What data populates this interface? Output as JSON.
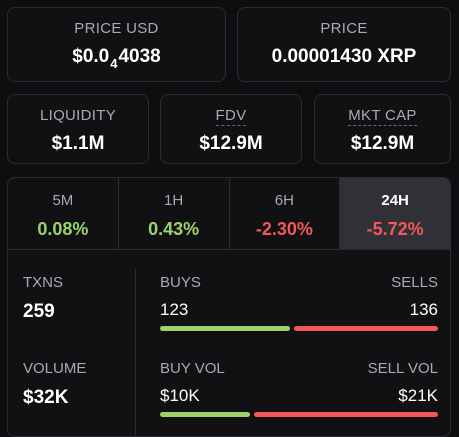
{
  "price_usd": {
    "label": "PRICE USD",
    "prefix": "$0.0",
    "zeros": "4",
    "digits": "4038"
  },
  "price_native": {
    "label": "PRICE",
    "value": "0.00001430 XRP"
  },
  "liquidity": {
    "label": "LIQUIDITY",
    "value": "$1.1M"
  },
  "fdv": {
    "label": "FDV",
    "value": "$12.9M"
  },
  "mkt_cap": {
    "label": "MKT CAP",
    "value": "$12.9M"
  },
  "timeframes": [
    {
      "label": "5M",
      "value": "0.08%"
    },
    {
      "label": "1H",
      "value": "0.43%"
    },
    {
      "label": "6H",
      "value": "-2.30%"
    },
    {
      "label": "24H",
      "value": "-5.72%"
    }
  ],
  "selected_timeframe": "24H",
  "txns": {
    "label": "TXNS",
    "value": "259"
  },
  "volume": {
    "label": "VOLUME",
    "value": "$32K"
  },
  "buys_sells": {
    "buys_label": "BUYS",
    "sells_label": "SELLS",
    "buys": "123",
    "sells": "136",
    "buy_fraction": 0.475
  },
  "buy_sell_vol": {
    "buys_label": "BUY VOL",
    "sells_label": "SELL VOL",
    "buys": "$10K",
    "sells": "$21K",
    "buy_fraction": 0.33
  },
  "colors": {
    "positive": "#9bd36a",
    "negative": "#f0585a",
    "active_tab": "#303036"
  }
}
